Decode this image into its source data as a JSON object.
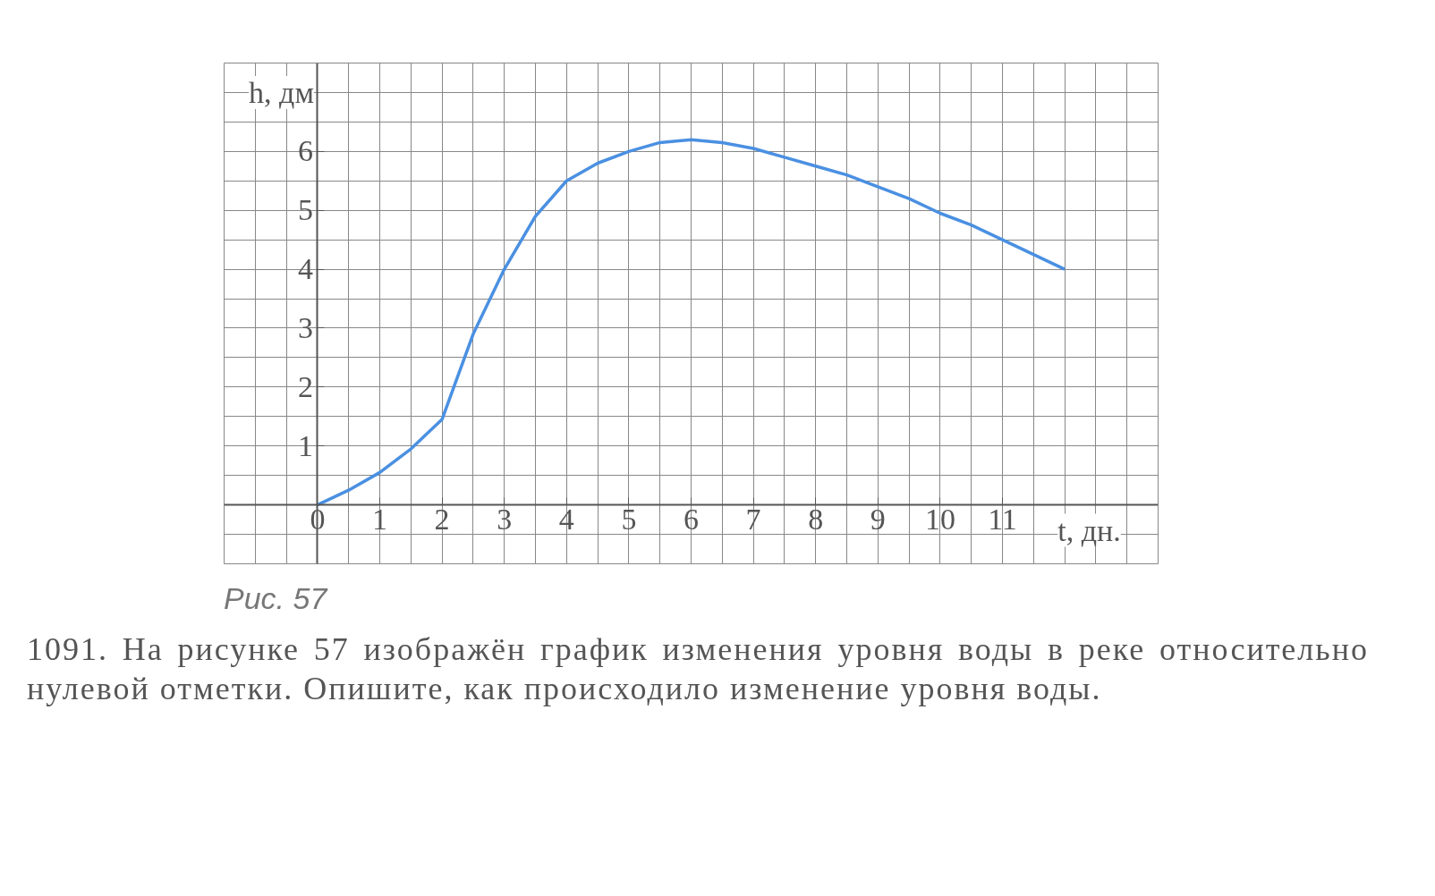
{
  "chart_data": {
    "type": "line",
    "xlabel": "t, дн.",
    "ylabel": "h, дм",
    "x": [
      0,
      0.5,
      1,
      1.5,
      2,
      2.5,
      3,
      3.5,
      4,
      4.5,
      5,
      5.5,
      6,
      6.5,
      7,
      7.5,
      8,
      8.5,
      9,
      9.5,
      10,
      10.5,
      11,
      11.5,
      12
    ],
    "series": [
      {
        "color": "#4a90e2",
        "values": [
          0,
          0.25,
          0.55,
          0.95,
          1.45,
          2.9,
          4.0,
          4.9,
          5.5,
          5.8,
          6.0,
          6.15,
          6.2,
          6.15,
          6.05,
          5.9,
          5.75,
          5.6,
          5.4,
          5.2,
          4.95,
          4.75,
          4.5,
          4.25,
          4.0
        ]
      }
    ],
    "xlim": [
      -1.5,
      13.5
    ],
    "ylim": [
      -1,
      7.5
    ],
    "xticks": [
      0,
      1,
      2,
      3,
      4,
      5,
      6,
      7,
      8,
      9,
      10,
      11
    ],
    "yticks": [
      1,
      2,
      3,
      4,
      5,
      6
    ],
    "grid": true,
    "annotations": [
      "Рис. 57",
      "1091. На рисунке 57 изображён график изменения уровня воды в реке относительно нулевой отметки. Опишите, как происходило изменение уровня воды."
    ]
  }
}
